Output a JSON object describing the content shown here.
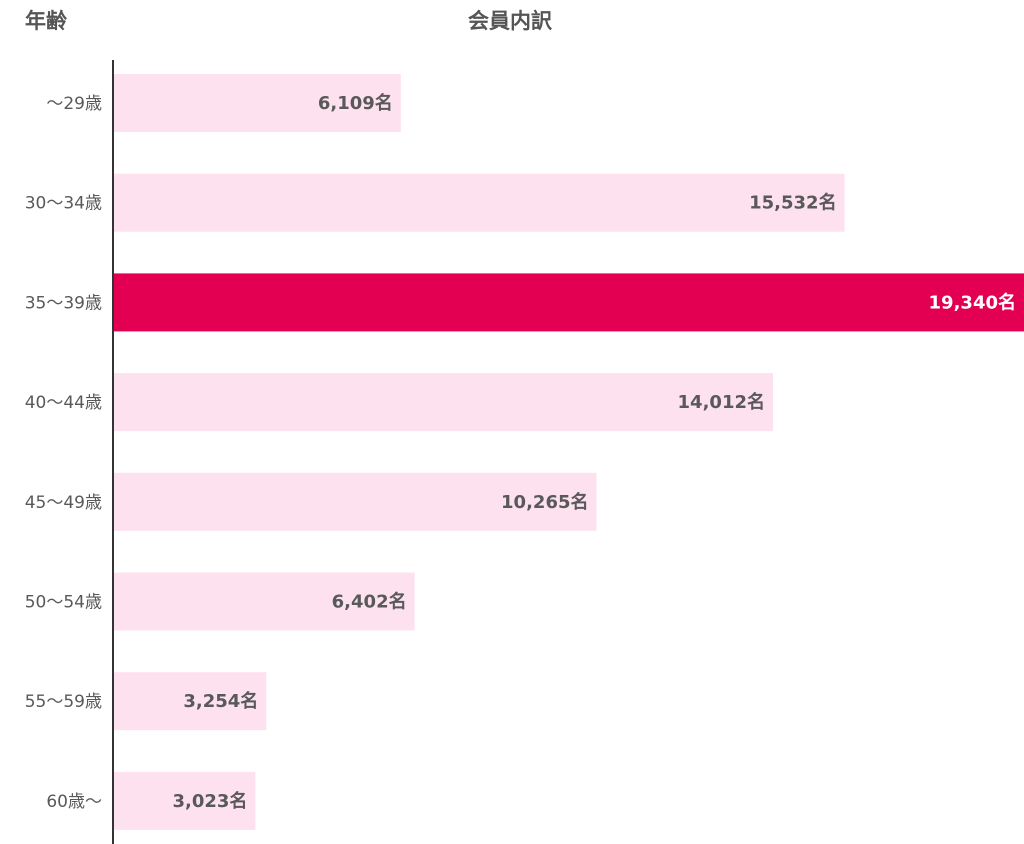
{
  "header": {
    "left_label": "年齢",
    "center_label": "会員内訳"
  },
  "colors": {
    "bar_default": "#fde1ef",
    "bar_highlight": "#e30052",
    "text": "#595959",
    "axis": "#333333"
  },
  "chart_data": {
    "type": "bar",
    "orientation": "horizontal",
    "title": "会員内訳",
    "ylabel": "年齢",
    "categories": [
      "～29歳",
      "30～34歳",
      "35～39歳",
      "40～44歳",
      "45～49歳",
      "50～54歳",
      "55～59歳",
      "60歳～"
    ],
    "values": [
      6109,
      15532,
      19340,
      14012,
      10265,
      6402,
      3254,
      3023
    ],
    "value_labels": [
      "6,109名",
      "15,532名",
      "19,340名",
      "14,012名",
      "10,265名",
      "6,402名",
      "3,254名",
      "3,023名"
    ],
    "highlight_index": 2,
    "xlim": [
      0,
      19340
    ],
    "grid": false,
    "legend": "none"
  }
}
